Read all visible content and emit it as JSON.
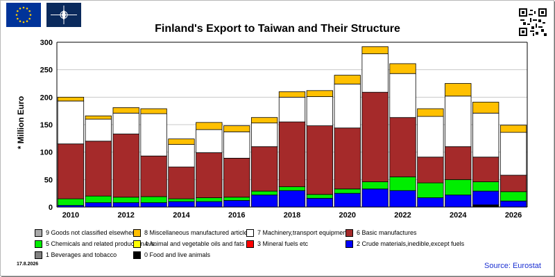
{
  "title": "Finland's Export to Taiwan and Their Structure",
  "date": "17.8.2026",
  "source": "Source: Eurostat",
  "colors": {
    "flag_blue": "#003399",
    "source_blue": "#1a2fd1"
  },
  "chart_data": {
    "type": "bar",
    "stacked": true,
    "title": "Finland's Export to Taiwan and Their Structure",
    "ylabel": "* Million Euro",
    "xlabel": "",
    "ylim": [
      0,
      300
    ],
    "yticks": [
      0,
      50,
      100,
      150,
      200,
      250,
      300
    ],
    "xtick_labels": [
      "2010",
      "2012",
      "2014",
      "2016",
      "2018",
      "2020",
      "2022",
      "2024",
      "2026"
    ],
    "grid": true,
    "categories": [
      "2010",
      "2011",
      "2012",
      "2013",
      "2014",
      "2015",
      "2016",
      "2017",
      "2018",
      "2019",
      "2020",
      "2021",
      "2022",
      "2023",
      "2024",
      "2025",
      "2026"
    ],
    "series": [
      {
        "name": "0 Food and live animals",
        "color": "#000000",
        "values": [
          0,
          0,
          0,
          0,
          0,
          0,
          0,
          0,
          0,
          0,
          0,
          0,
          0,
          0,
          0,
          4,
          0
        ]
      },
      {
        "name": "2 Crude materials,inedible,except fuels",
        "color": "#0000ff",
        "values": [
          3,
          8,
          8,
          8,
          10,
          10,
          12,
          22,
          30,
          16,
          25,
          33,
          30,
          17,
          22,
          25,
          11
        ]
      },
      {
        "name": "5 Chemicals and related products,n.e.s.",
        "color": "#00ee00",
        "values": [
          12,
          12,
          10,
          11,
          5,
          7,
          6,
          7,
          7,
          7,
          8,
          13,
          25,
          27,
          28,
          17,
          17
        ]
      },
      {
        "name": "6 Basic manufactures",
        "color": "#a52a2a",
        "values": [
          100,
          100,
          115,
          74,
          58,
          82,
          71,
          81,
          118,
          125,
          111,
          163,
          108,
          47,
          60,
          45,
          30
        ]
      },
      {
        "name": "7 Machinery,transport equipment",
        "color": "#ffffff",
        "values": [
          78,
          40,
          38,
          77,
          41,
          42,
          48,
          43,
          45,
          53,
          80,
          70,
          80,
          74,
          92,
          80,
          78
        ]
      },
      {
        "name": "8 Miscellaneous manufactured articles",
        "color": "#ffc000",
        "values": [
          7,
          6,
          10,
          9,
          10,
          13,
          11,
          10,
          10,
          11,
          16,
          13,
          18,
          14,
          23,
          20,
          13
        ]
      }
    ]
  },
  "legend": [
    {
      "label": "9 Goods not classified elsewhere",
      "color": "#a9a9a9"
    },
    {
      "label": "8 Miscellaneous manufactured articles",
      "color": "#ffc000"
    },
    {
      "label": "7 Machinery,transport equipment",
      "color": "#ffffff"
    },
    {
      "label": "6 Basic manufactures",
      "color": "#a52a2a"
    },
    {
      "label": "5 Chemicals and related products,n.e.s.",
      "color": "#00ee00"
    },
    {
      "label": "4 Animal and vegetable oils and fats",
      "color": "#ffff00"
    },
    {
      "label": "3 Mineral fuels etc",
      "color": "#ff0000"
    },
    {
      "label": "2 Crude materials,inedible,except fuels",
      "color": "#0000ff"
    },
    {
      "label": "1 Beverages and tobacco",
      "color": "#808080"
    },
    {
      "label": "0 Food and live animals",
      "color": "#000000"
    }
  ]
}
